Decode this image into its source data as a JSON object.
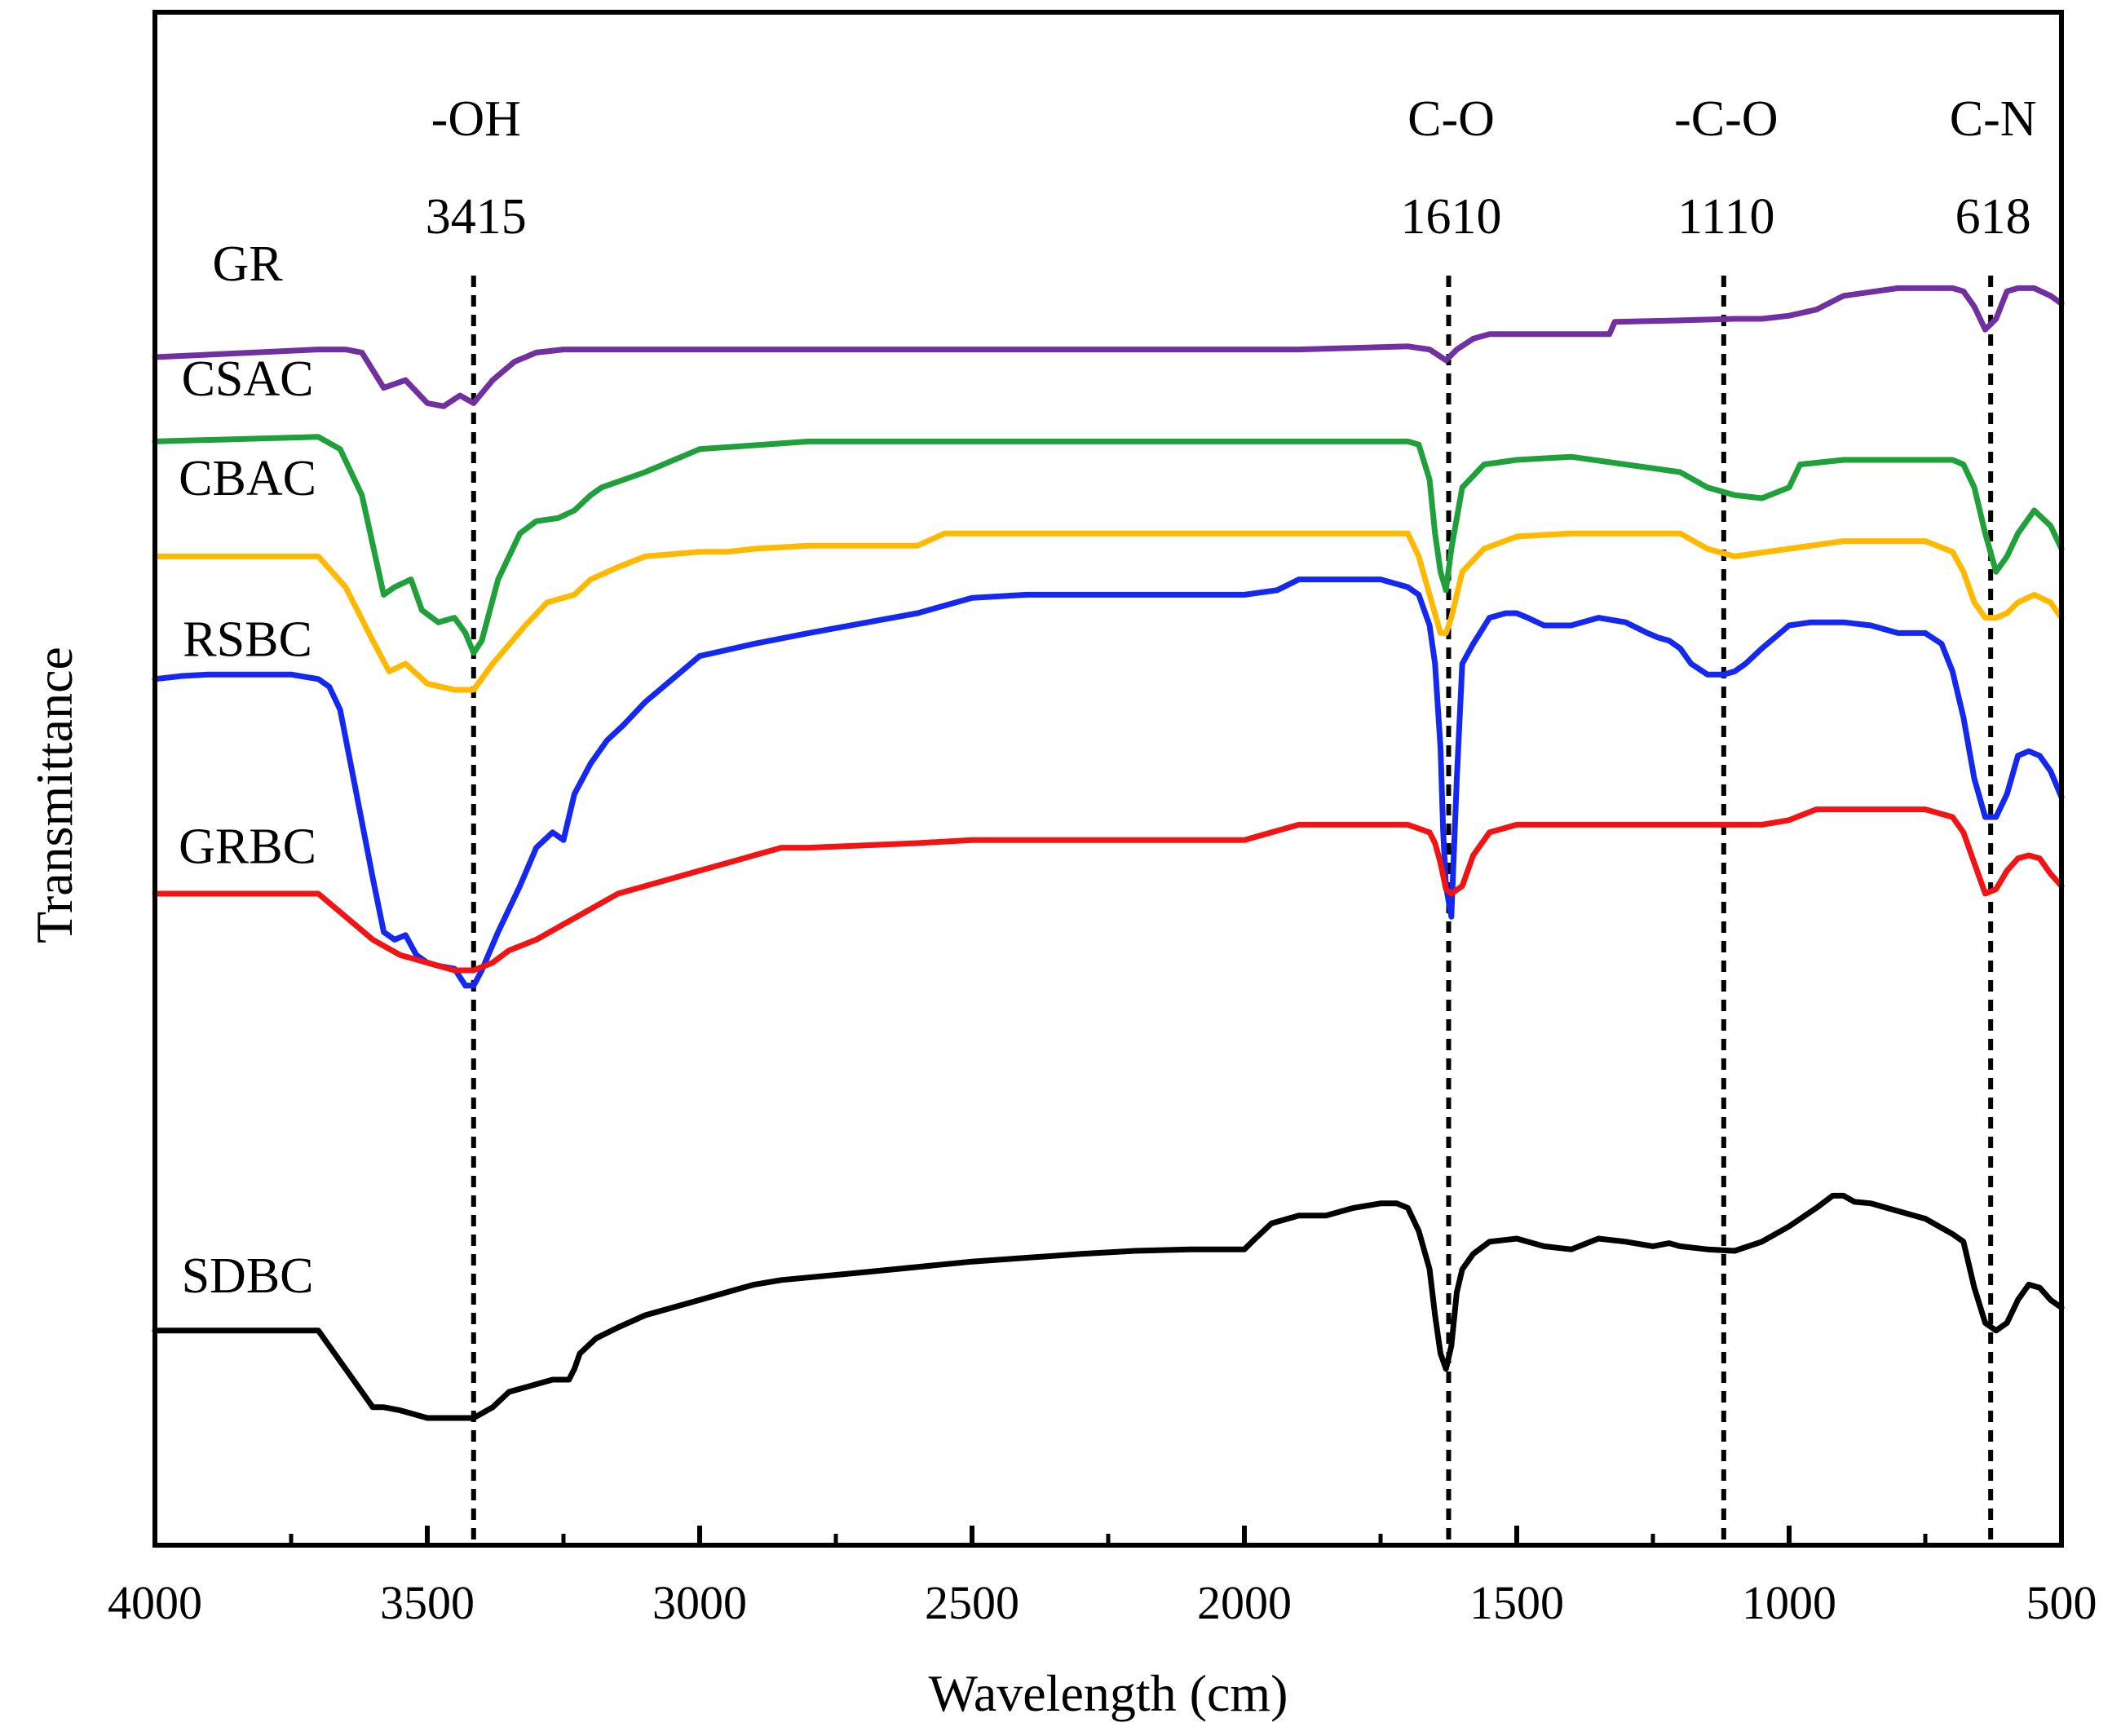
{
  "chart_data": {
    "type": "line",
    "title": "",
    "xlabel": "Wavelength (cm)",
    "ylabel": "Transmittance",
    "xlim": [
      4000,
      500
    ],
    "x_reversed": true,
    "xticks": [
      4000,
      3500,
      3000,
      2500,
      2000,
      1500,
      1000,
      500
    ],
    "ylim": [
      0,
      100
    ],
    "yticks_shown": false,
    "grid": false,
    "legend": "inline labels at left of each curve",
    "peaks": [
      {
        "group": "-OH",
        "wavenumber": "3415",
        "x": 3415
      },
      {
        "group": "C-O",
        "wavenumber": "1610",
        "x": 1625
      },
      {
        "group": "-C-O",
        "wavenumber": "1110",
        "x": 1120
      },
      {
        "group": "C-N",
        "wavenumber": "618",
        "x": 630
      }
    ],
    "series": [
      {
        "name": "GR",
        "color": "#7030A0",
        "label_x": 3830,
        "label_y": 82.5,
        "x": [
          4000,
          3700,
          3650,
          3620,
          3580,
          3540,
          3500,
          3470,
          3440,
          3415,
          3380,
          3340,
          3300,
          3250,
          3200,
          3000,
          2500,
          2000,
          1900,
          1700,
          1660,
          1630,
          1610,
          1580,
          1550,
          1500,
          1400,
          1330,
          1320,
          1200,
          1100,
          1050,
          1000,
          950,
          900,
          800,
          700,
          680,
          660,
          640,
          620,
          600,
          580,
          550,
          520,
          500
        ],
        "y": [
          77.5,
          78.0,
          78.0,
          77.8,
          75.5,
          76.0,
          74.5,
          74.3,
          75.0,
          74.5,
          76.0,
          77.2,
          77.8,
          78.0,
          78.0,
          78.0,
          78.0,
          78.0,
          78.0,
          78.2,
          78.0,
          77.3,
          78.0,
          78.7,
          79.0,
          79.0,
          79.0,
          79.0,
          79.8,
          79.9,
          80.0,
          80.0,
          80.2,
          80.6,
          81.5,
          82.0,
          82.0,
          81.8,
          80.8,
          79.3,
          80.0,
          81.8,
          82.0,
          82.0,
          81.5,
          81.0
        ]
      },
      {
        "name": "CSAC",
        "color": "#1FA03B",
        "label_x": 3830,
        "label_y": 75.0,
        "x": [
          4000,
          3800,
          3700,
          3660,
          3620,
          3580,
          3560,
          3530,
          3510,
          3480,
          3450,
          3430,
          3415,
          3400,
          3370,
          3330,
          3300,
          3260,
          3230,
          3200,
          3180,
          3100,
          3000,
          2800,
          2500,
          2000,
          1700,
          1680,
          1660,
          1650,
          1640,
          1630,
          1620,
          1600,
          1560,
          1500,
          1400,
          1300,
          1200,
          1150,
          1100,
          1050,
          1000,
          980,
          900,
          800,
          700,
          680,
          660,
          640,
          620,
          600,
          580,
          550,
          520,
          500
        ],
        "y": [
          72.0,
          72.2,
          72.3,
          71.5,
          68.5,
          62.0,
          62.5,
          63.0,
          61.0,
          60.2,
          60.5,
          59.5,
          58.2,
          59.0,
          63.0,
          66.0,
          66.8,
          67.0,
          67.5,
          68.5,
          69.0,
          70.0,
          71.5,
          72.0,
          72.0,
          72.0,
          72.0,
          71.8,
          69.5,
          66.0,
          63.5,
          62.3,
          65.0,
          69.0,
          70.5,
          70.8,
          71.0,
          70.5,
          70.0,
          69.0,
          68.5,
          68.3,
          69.0,
          70.5,
          70.8,
          70.8,
          70.8,
          70.5,
          69.0,
          66.0,
          63.5,
          64.5,
          66.0,
          67.5,
          66.5,
          65.0
        ]
      },
      {
        "name": "CBAC",
        "color": "#FFB900",
        "label_x": 3830,
        "label_y": 68.5,
        "x": [
          4000,
          3800,
          3700,
          3650,
          3600,
          3570,
          3540,
          3500,
          3450,
          3415,
          3380,
          3320,
          3280,
          3230,
          3200,
          3150,
          3100,
          3000,
          2950,
          2900,
          2800,
          2600,
          2550,
          2500,
          2000,
          1700,
          1680,
          1660,
          1640,
          1630,
          1620,
          1600,
          1560,
          1500,
          1400,
          1300,
          1200,
          1150,
          1100,
          1000,
          900,
          750,
          700,
          680,
          660,
          640,
          620,
          600,
          580,
          550,
          520,
          500
        ],
        "y": [
          64.5,
          64.5,
          64.5,
          62.5,
          59.0,
          57.0,
          57.5,
          56.2,
          55.8,
          55.8,
          57.5,
          60.0,
          61.5,
          62.0,
          63.0,
          63.8,
          64.5,
          64.8,
          64.8,
          65.0,
          65.2,
          65.2,
          66.0,
          66.0,
          66.0,
          66.0,
          64.5,
          62.0,
          59.5,
          59.5,
          60.5,
          63.5,
          65.0,
          65.8,
          66.0,
          66.0,
          66.0,
          65.0,
          64.5,
          65.0,
          65.5,
          65.5,
          64.8,
          63.5,
          61.5,
          60.5,
          60.5,
          60.8,
          61.5,
          62.0,
          61.5,
          60.5
        ]
      },
      {
        "name": "RSBC",
        "color": "#1428F0",
        "label_x": 3830,
        "label_y": 58.0,
        "x": [
          4000,
          3950,
          3900,
          3850,
          3800,
          3750,
          3700,
          3680,
          3660,
          3630,
          3600,
          3580,
          3560,
          3540,
          3520,
          3500,
          3480,
          3450,
          3430,
          3415,
          3400,
          3370,
          3330,
          3300,
          3270,
          3250,
          3230,
          3200,
          3170,
          3140,
          3100,
          3050,
          3000,
          2900,
          2800,
          2600,
          2500,
          2400,
          2200,
          2000,
          1940,
          1900,
          1850,
          1800,
          1750,
          1700,
          1680,
          1660,
          1650,
          1640,
          1635,
          1630,
          1620,
          1610,
          1600,
          1580,
          1550,
          1520,
          1500,
          1480,
          1450,
          1420,
          1400,
          1350,
          1300,
          1260,
          1240,
          1220,
          1200,
          1180,
          1150,
          1120,
          1100,
          1080,
          1050,
          1000,
          960,
          900,
          850,
          800,
          750,
          720,
          700,
          680,
          660,
          640,
          620,
          600,
          580,
          560,
          540,
          520,
          500
        ],
        "y": [
          56.5,
          56.7,
          56.8,
          56.8,
          56.8,
          56.8,
          56.5,
          56.0,
          54.5,
          49.0,
          43.5,
          40.0,
          39.5,
          39.8,
          38.5,
          38.0,
          37.8,
          37.6,
          36.5,
          36.5,
          37.5,
          40.0,
          43.0,
          45.5,
          46.5,
          46.0,
          49.0,
          51.0,
          52.5,
          53.5,
          55.0,
          56.5,
          58.0,
          58.8,
          59.5,
          60.8,
          61.8,
          62.0,
          62.0,
          62.0,
          62.3,
          63.0,
          63.0,
          63.0,
          63.0,
          62.5,
          62.0,
          60.0,
          57.5,
          52.0,
          46.5,
          43.0,
          41.0,
          50.0,
          57.5,
          58.8,
          60.5,
          60.8,
          60.8,
          60.5,
          60.0,
          60.0,
          60.0,
          60.5,
          60.2,
          59.5,
          59.2,
          59.0,
          58.5,
          57.5,
          56.8,
          56.8,
          57.0,
          57.5,
          58.5,
          60.0,
          60.2,
          60.2,
          60.0,
          59.5,
          59.5,
          58.8,
          57.0,
          54.0,
          50.0,
          47.5,
          47.5,
          49.0,
          51.5,
          51.8,
          51.5,
          50.5,
          48.8
        ]
      },
      {
        "name": "GRBC",
        "color": "#F01414",
        "label_x": 3830,
        "label_y": 44.5,
        "x": [
          4000,
          3700,
          3650,
          3600,
          3550,
          3500,
          3450,
          3415,
          3380,
          3350,
          3300,
          3250,
          3200,
          3150,
          3100,
          3000,
          2900,
          2850,
          2800,
          2600,
          2500,
          2200,
          2000,
          1950,
          1900,
          1700,
          1660,
          1650,
          1640,
          1630,
          1620,
          1600,
          1580,
          1550,
          1500,
          1400,
          1300,
          1100,
          1050,
          1000,
          950,
          900,
          800,
          750,
          700,
          680,
          660,
          640,
          620,
          600,
          580,
          560,
          540,
          520,
          500
        ],
        "y": [
          42.5,
          42.5,
          41.0,
          39.5,
          38.5,
          38.0,
          37.5,
          37.5,
          38.0,
          38.8,
          39.5,
          40.5,
          41.5,
          42.5,
          43.0,
          44.0,
          45.0,
          45.5,
          45.5,
          45.8,
          46.0,
          46.0,
          46.0,
          46.5,
          47.0,
          47.0,
          46.5,
          45.8,
          44.5,
          42.8,
          42.5,
          43.0,
          45.0,
          46.5,
          47.0,
          47.0,
          47.0,
          47.0,
          47.0,
          47.3,
          48.0,
          48.0,
          48.0,
          48.0,
          47.5,
          46.5,
          44.5,
          42.5,
          42.8,
          44.0,
          44.8,
          45.0,
          44.8,
          43.8,
          43.0
        ]
      },
      {
        "name": "SDBC",
        "color": "#000000",
        "label_x": 3830,
        "label_y": 16.5,
        "x": [
          4000,
          3800,
          3700,
          3670,
          3630,
          3600,
          3580,
          3550,
          3500,
          3470,
          3430,
          3415,
          3380,
          3350,
          3300,
          3270,
          3240,
          3230,
          3220,
          3190,
          3150,
          3100,
          3050,
          3000,
          2950,
          2900,
          2850,
          2700,
          2500,
          2300,
          2200,
          2100,
          2000,
          1980,
          1950,
          1900,
          1850,
          1800,
          1750,
          1720,
          1700,
          1680,
          1660,
          1650,
          1640,
          1630,
          1620,
          1610,
          1600,
          1580,
          1550,
          1500,
          1450,
          1400,
          1350,
          1300,
          1250,
          1220,
          1200,
          1150,
          1100,
          1050,
          1000,
          950,
          920,
          900,
          880,
          850,
          800,
          750,
          700,
          680,
          660,
          640,
          620,
          600,
          580,
          560,
          540,
          520,
          500
        ],
        "y": [
          14.0,
          14.0,
          14.0,
          12.5,
          10.5,
          9.0,
          9.0,
          8.8,
          8.3,
          8.3,
          8.3,
          8.3,
          9.0,
          10.0,
          10.5,
          10.8,
          10.8,
          11.5,
          12.5,
          13.5,
          14.2,
          15.0,
          15.5,
          16.0,
          16.5,
          17.0,
          17.3,
          17.8,
          18.5,
          19.0,
          19.2,
          19.3,
          19.3,
          20.0,
          21.0,
          21.5,
          21.5,
          22.0,
          22.3,
          22.3,
          22.0,
          20.5,
          18.0,
          15.0,
          12.5,
          11.5,
          13.0,
          16.5,
          18.0,
          19.0,
          19.8,
          20.0,
          19.5,
          19.3,
          20.0,
          19.8,
          19.5,
          19.7,
          19.5,
          19.3,
          19.2,
          19.8,
          20.8,
          22.0,
          22.8,
          22.8,
          22.4,
          22.3,
          21.8,
          21.3,
          20.3,
          19.8,
          16.8,
          14.5,
          14.0,
          14.5,
          16.0,
          17.0,
          16.8,
          16.0,
          15.5
        ]
      }
    ]
  }
}
